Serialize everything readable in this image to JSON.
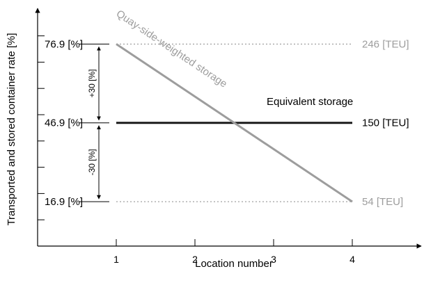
{
  "chart_data": {
    "type": "line",
    "xlabel": "Location number",
    "ylabel": "Transported and stored container rate   [%]",
    "x_ticks": [
      1,
      2,
      3,
      4
    ],
    "xlim": [
      0,
      4.85
    ],
    "ylim": [
      0,
      87
    ],
    "y_tick_values": [
      10,
      20,
      30,
      40,
      50,
      60,
      70,
      80
    ],
    "series": [
      {
        "name": "Quay-side-weighted storage",
        "x": [
          1,
          4
        ],
        "y": [
          76.9,
          16.9
        ],
        "color": "#9d9d9d",
        "end_label": "246 [TEU]",
        "start_label": "54 [TEU]"
      },
      {
        "name": "Equivalent storage",
        "x": [
          1,
          4
        ],
        "y": [
          46.9,
          46.9
        ],
        "color": "#1a1a1a",
        "end_label": "150 [TEU]"
      }
    ],
    "levels": [
      {
        "value": 76.9,
        "label": "76.9 [%]",
        "line": "dotted"
      },
      {
        "value": 46.9,
        "label": "46.9 [%]",
        "line": "none"
      },
      {
        "value": 16.9,
        "label": "16.9 [%]",
        "line": "dotted"
      }
    ],
    "differences": [
      {
        "from": 46.9,
        "to": 76.9,
        "label": "+30 [%]"
      },
      {
        "from": 16.9,
        "to": 46.9,
        "label": "-30 [%]"
      }
    ],
    "grid": false,
    "legend": "none"
  }
}
